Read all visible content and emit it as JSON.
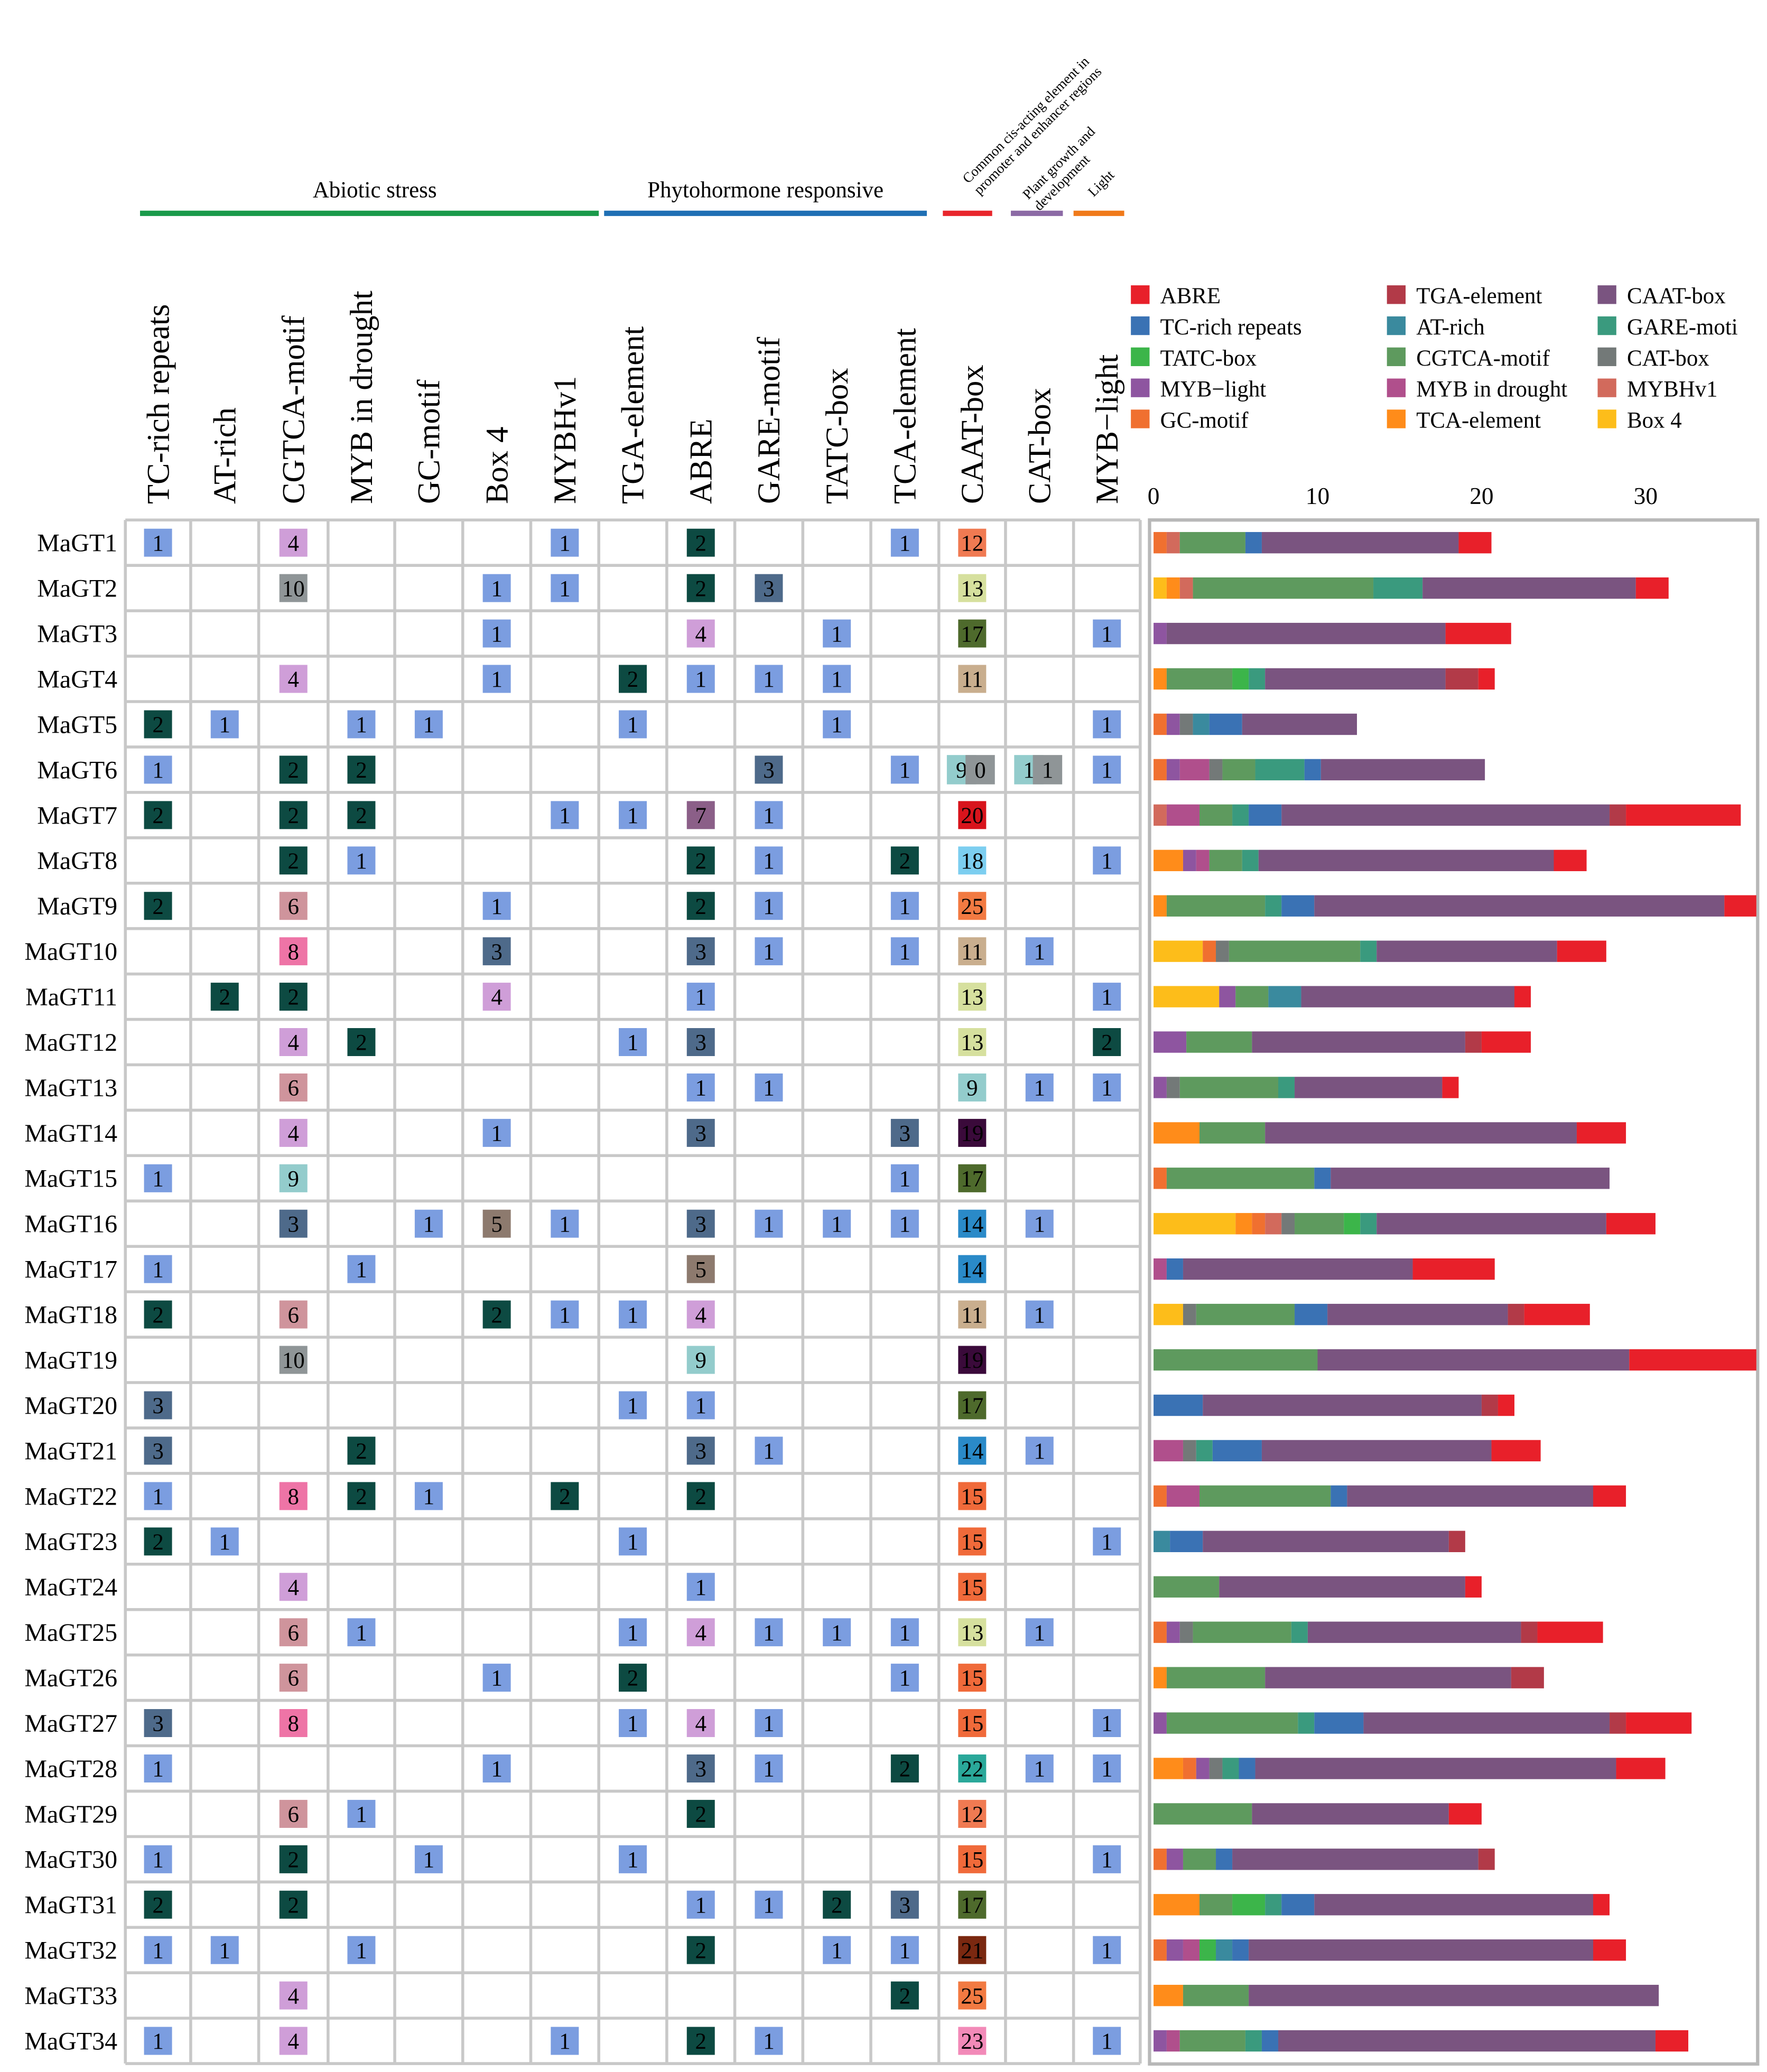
{
  "categories": [
    {
      "label": "Abiotic stress",
      "color": "#1a9a4a"
    },
    {
      "label": "Phytohormone responsive",
      "color": "#1f6fb4"
    },
    {
      "label": "Common cis-acting element in promoter and enhancer regions",
      "color": "#e8262c"
    },
    {
      "label": "Plant growth and development",
      "color": "#8c6aa5"
    },
    {
      "label": "Light",
      "color": "#f07a1a"
    }
  ],
  "elements": [
    "TC-rich repeats",
    "AT-rich",
    "CGTCA-motif",
    "MYB in drought",
    "GC-motif",
    "Box 4",
    "MYBHv1",
    "TGA-element",
    "ABRE",
    "GARE-motif",
    "TATC-box",
    "TCA-element",
    "CAAT-box",
    "CAT-box",
    "MYB−light"
  ],
  "genes": [
    "MaGT1",
    "MaGT2",
    "MaGT3",
    "MaGT4",
    "MaGT5",
    "MaGT6",
    "MaGT7",
    "MaGT8",
    "MaGT9",
    "MaGT10",
    "MaGT11",
    "MaGT12",
    "MaGT13",
    "MaGT14",
    "MaGT15",
    "MaGT16",
    "MaGT17",
    "MaGT18",
    "MaGT19",
    "MaGT20",
    "MaGT21",
    "MaGT22",
    "MaGT23",
    "MaGT24",
    "MaGT25",
    "MaGT26",
    "MaGT27",
    "MaGT28",
    "MaGT29",
    "MaGT30",
    "MaGT31",
    "MaGT32",
    "MaGT33",
    "MaGT34"
  ],
  "count_colors": {
    "1": "#7b9de0",
    "2": "#0d4a42",
    "3": "#4e6a8a",
    "4": "#cf9ed8",
    "5": "#8d7a6e",
    "6": "#cf949c",
    "7": "#8b5f88",
    "8": "#ee74a6",
    "9": "#93cccc",
    "10": "#8f9597",
    "11": "#c9ae8e",
    "12": "#f07a52",
    "13": "#d6e09e",
    "14": "#2a8ac8",
    "15": "#f06a3a",
    "17": "#4e6a2c",
    "18": "#7ccef0",
    "19": "#3a0a3a",
    "20": "#d8141c",
    "21": "#7a2810",
    "22": "#2aa89a",
    "23": "#f28ab8",
    "25": "#f27a42"
  },
  "matrix": [
    [
      "1",
      "",
      "4",
      "",
      "",
      "",
      "1",
      "",
      "2",
      "",
      "",
      "1",
      "12",
      "",
      ""
    ],
    [
      "",
      "",
      "10",
      "",
      "",
      "1",
      "1",
      "",
      "2",
      "3",
      "",
      "",
      "13",
      "",
      ""
    ],
    [
      "",
      "",
      "",
      "",
      "",
      "1",
      "",
      "",
      "4",
      "",
      "1",
      "",
      "17",
      "",
      "1"
    ],
    [
      "",
      "",
      "4",
      "",
      "",
      "1",
      "",
      "2",
      "1",
      "1",
      "1",
      "",
      "11",
      "",
      ""
    ],
    [
      "2",
      "1",
      "",
      "1",
      "1",
      "",
      "",
      "1",
      "",
      "",
      "1",
      "",
      "",
      "",
      "1"
    ],
    [
      "1",
      "",
      "2",
      "2",
      "",
      "",
      "",
      "",
      "",
      "3",
      "",
      "1",
      "9 0",
      "1 1",
      "1"
    ],
    [
      "2",
      "",
      "2",
      "2",
      "",
      "",
      "1",
      "1",
      "7",
      "1",
      "",
      "",
      "20",
      "",
      ""
    ],
    [
      "",
      "",
      "2",
      "1",
      "",
      "",
      "",
      "",
      "2",
      "1",
      "",
      "2",
      "18",
      "",
      "1"
    ],
    [
      "2",
      "",
      "6",
      "",
      "",
      "1",
      "",
      "",
      "2",
      "1",
      "",
      "1",
      "25",
      "",
      ""
    ],
    [
      "",
      "",
      "8",
      "",
      "",
      "3",
      "",
      "",
      "3",
      "1",
      "",
      "1",
      "11",
      "1",
      ""
    ],
    [
      "",
      "2",
      "2",
      "",
      "",
      "4",
      "",
      "",
      "1",
      "",
      "",
      "",
      "13",
      "",
      "1"
    ],
    [
      "",
      "",
      "4",
      "2",
      "",
      "",
      "",
      "1",
      "3",
      "",
      "",
      "",
      "13",
      "",
      "2"
    ],
    [
      "",
      "",
      "6",
      "",
      "",
      "",
      "",
      "",
      "1",
      "1",
      "",
      "",
      "9",
      "1",
      "1"
    ],
    [
      "",
      "",
      "4",
      "",
      "",
      "1",
      "",
      "",
      "3",
      "",
      "",
      "3",
      "19",
      "",
      ""
    ],
    [
      "1",
      "",
      "9",
      "",
      "",
      "",
      "",
      "",
      "",
      "",
      "",
      "1",
      "17",
      "",
      ""
    ],
    [
      "",
      "",
      "3",
      "",
      "1",
      "5",
      "1",
      "",
      "3",
      "1",
      "1",
      "1",
      "14",
      "1",
      ""
    ],
    [
      "1",
      "",
      "",
      "1",
      "",
      "",
      "",
      "",
      "5",
      "",
      "",
      "",
      "14",
      "",
      ""
    ],
    [
      "2",
      "",
      "6",
      "",
      "",
      "2",
      "1",
      "1",
      "4",
      "",
      "",
      "",
      "11",
      "1",
      ""
    ],
    [
      "",
      "",
      "10",
      "",
      "",
      "",
      "",
      "",
      "9",
      "",
      "",
      "",
      "19",
      "",
      ""
    ],
    [
      "3",
      "",
      "",
      "",
      "",
      "",
      "",
      "1",
      "1",
      "",
      "",
      "",
      "17",
      "",
      ""
    ],
    [
      "3",
      "",
      "",
      "2",
      "",
      "",
      "",
      "",
      "3",
      "1",
      "",
      "",
      "14",
      "1",
      ""
    ],
    [
      "1",
      "",
      "8",
      "2",
      "1",
      "",
      "2",
      "",
      "2",
      "",
      "",
      "",
      "15",
      "",
      ""
    ],
    [
      "2",
      "1",
      "",
      "",
      "",
      "",
      "",
      "1",
      "",
      "",
      "",
      "",
      "15",
      "",
      "1"
    ],
    [
      "",
      "",
      "4",
      "",
      "",
      "",
      "",
      "",
      "1",
      "",
      "",
      "",
      "15",
      "",
      ""
    ],
    [
      "",
      "",
      "6",
      "1",
      "",
      "",
      "",
      "1",
      "4",
      "1",
      "1",
      "1",
      "13",
      "1",
      ""
    ],
    [
      "",
      "",
      "6",
      "",
      "",
      "1",
      "",
      "2",
      "",
      "",
      "",
      "1",
      "15",
      "",
      ""
    ],
    [
      "3",
      "",
      "8",
      "",
      "",
      "",
      "",
      "1",
      "4",
      "1",
      "",
      "",
      "15",
      "",
      "1"
    ],
    [
      "1",
      "",
      "",
      "",
      "",
      "1",
      "",
      "",
      "3",
      "1",
      "",
      "2",
      "22",
      "1",
      "1"
    ],
    [
      "",
      "",
      "6",
      "1",
      "",
      "",
      "",
      "",
      "2",
      "",
      "",
      "",
      "12",
      "",
      ""
    ],
    [
      "1",
      "",
      "2",
      "",
      "1",
      "",
      "",
      "1",
      "",
      "",
      "",
      "",
      "15",
      "",
      "1"
    ],
    [
      "2",
      "",
      "2",
      "",
      "",
      "",
      "",
      "",
      "1",
      "1",
      "2",
      "3",
      "17",
      "",
      ""
    ],
    [
      "1",
      "1",
      "",
      "1",
      "",
      "",
      "",
      "",
      "2",
      "",
      "1",
      "1",
      "21",
      "",
      "1"
    ],
    [
      "",
      "",
      "4",
      "",
      "",
      "",
      "",
      "",
      "",
      "",
      "",
      "2",
      "25",
      "",
      ""
    ],
    [
      "1",
      "",
      "4",
      "",
      "",
      "",
      "1",
      "",
      "2",
      "1",
      "",
      "",
      "23",
      "",
      "1"
    ]
  ],
  "chart_data": {
    "type": "bar",
    "orientation": "horizontal",
    "stacked": true,
    "x_ticks": [
      0,
      10,
      20,
      30
    ],
    "xlim": [
      0,
      37.5
    ],
    "categories": [
      "MaGT1",
      "MaGT2",
      "MaGT3",
      "MaGT4",
      "MaGT5",
      "MaGT6",
      "MaGT7",
      "MaGT8",
      "MaGT9",
      "MaGT10",
      "MaGT11",
      "MaGT12",
      "MaGT13",
      "MaGT14",
      "MaGT15",
      "MaGT16",
      "MaGT17",
      "MaGT18",
      "MaGT19",
      "MaGT20",
      "MaGT21",
      "MaGT22",
      "MaGT23",
      "MaGT24",
      "MaGT25",
      "MaGT26",
      "MaGT27",
      "MaGT28",
      "MaGT29",
      "MaGT30",
      "MaGT31",
      "MaGT32",
      "MaGT33",
      "MaGT34"
    ],
    "series": [
      {
        "name": "Box 4",
        "color": "#fdbd1a",
        "values": [
          0,
          0.8,
          0,
          0,
          0,
          0,
          0,
          0,
          0,
          3,
          4,
          0,
          0,
          0,
          0,
          5,
          0,
          1.8,
          0,
          0,
          0,
          0,
          0,
          0,
          0,
          0,
          0,
          0,
          0,
          0,
          0,
          0,
          0,
          0
        ]
      },
      {
        "name": "TCA-element",
        "color": "#ff8c1a",
        "values": [
          0,
          0.8,
          0,
          0.8,
          0,
          0,
          0,
          1.8,
          0.8,
          0,
          0,
          0,
          0,
          2.8,
          0,
          1,
          0,
          0,
          0,
          0,
          0,
          0,
          0,
          0,
          0,
          0.8,
          0,
          1.8,
          0,
          0,
          2.8,
          0,
          1.8,
          0
        ]
      },
      {
        "name": "GC-motif",
        "color": "#f07030",
        "values": [
          0.8,
          0,
          0,
          0,
          0.8,
          0.8,
          0,
          0,
          0,
          0.8,
          0,
          0,
          0,
          0,
          0.8,
          0.8,
          0,
          0,
          0,
          0,
          0,
          0.8,
          0,
          0,
          0.8,
          0,
          0,
          0.8,
          0,
          0.8,
          0,
          0.8,
          0,
          0
        ]
      },
      {
        "name": "MYBHv1",
        "color": "#d26a5c",
        "values": [
          0.8,
          0.8,
          0,
          0,
          0,
          0,
          0.8,
          0,
          0,
          0,
          0,
          0,
          0,
          0,
          0,
          1,
          0,
          0,
          0,
          0,
          0,
          0,
          0,
          0,
          0,
          0,
          0,
          0,
          0,
          0,
          0,
          0,
          0,
          0
        ]
      },
      {
        "name": "MYB−light",
        "color": "#8e55a0",
        "values": [
          0,
          0,
          0.8,
          0,
          0.8,
          0.8,
          0,
          0.8,
          0,
          0,
          1,
          2,
          0.8,
          0,
          0,
          0,
          0,
          0,
          0,
          0,
          0,
          0,
          0,
          0,
          0.8,
          0,
          0.8,
          0.8,
          0,
          1,
          0,
          1,
          0,
          0.8
        ]
      },
      {
        "name": "MYB in drought",
        "color": "#b04f8c",
        "values": [
          0,
          0,
          0,
          0,
          0,
          1.8,
          2,
          0.8,
          0,
          0,
          0,
          0,
          0,
          0,
          0,
          0,
          0.8,
          0,
          0,
          0,
          1.8,
          2,
          0,
          0,
          0,
          0,
          0,
          0,
          0,
          0,
          0,
          1,
          0,
          0.8
        ]
      },
      {
        "name": "CAT-box",
        "color": "#737978",
        "values": [
          0,
          0,
          0,
          0,
          0.8,
          0.8,
          0,
          0,
          0,
          0.8,
          0,
          0,
          0.8,
          0,
          0,
          0.8,
          0,
          0.8,
          0,
          0,
          0.8,
          0,
          0,
          0,
          0.8,
          0,
          0,
          0.8,
          0,
          0,
          0,
          0,
          0,
          0
        ]
      },
      {
        "name": "CGTCA-motif",
        "color": "#5e9a5e",
        "values": [
          4,
          11,
          0,
          4,
          0,
          2,
          2,
          2,
          6,
          8,
          2,
          4,
          6,
          4,
          9,
          3,
          0,
          6,
          10,
          0,
          0,
          8,
          0,
          4,
          6,
          6,
          8,
          0,
          6,
          2,
          2,
          0,
          4,
          4
        ]
      },
      {
        "name": "TATC-box",
        "color": "#3cb54a",
        "values": [
          0,
          0,
          0,
          1,
          0,
          0,
          0,
          0,
          0,
          0,
          0,
          0,
          0,
          0,
          0,
          1,
          0,
          0,
          0,
          0,
          0,
          0,
          0,
          0,
          0,
          0,
          0,
          0,
          0,
          0,
          2,
          1,
          0,
          0
        ]
      },
      {
        "name": "GARE-motif",
        "color": "#3a9a7e",
        "values": [
          0,
          3,
          0,
          1,
          0,
          3,
          1,
          1,
          1,
          1,
          0,
          0,
          1,
          0,
          0,
          1,
          0,
          0,
          0,
          0,
          1,
          0,
          0,
          0,
          1,
          0,
          1,
          1,
          0,
          0,
          1,
          0,
          0,
          1
        ]
      },
      {
        "name": "AT-rich",
        "color": "#3a8a9e",
        "values": [
          0,
          0,
          0,
          0,
          1,
          0,
          0,
          0,
          0,
          0,
          2,
          0,
          0,
          0,
          0,
          0,
          0,
          0,
          0,
          0,
          0,
          0,
          1,
          0,
          0,
          0,
          0,
          0,
          0,
          0,
          0,
          1,
          0,
          0
        ]
      },
      {
        "name": "TC-rich repeats",
        "color": "#3a72b4",
        "values": [
          1,
          0,
          0,
          0,
          2,
          1,
          2,
          0,
          2,
          0,
          0,
          0,
          0,
          0,
          1,
          0,
          1,
          2,
          0,
          3,
          3,
          1,
          2,
          0,
          0,
          0,
          3,
          1,
          0,
          1,
          2,
          1,
          0,
          1
        ]
      },
      {
        "name": "CAAT-box",
        "color": "#7a5480",
        "values": [
          12,
          13,
          17,
          11,
          7,
          10,
          20,
          18,
          25,
          11,
          13,
          13,
          9,
          19,
          17,
          14,
          14,
          11,
          19,
          17,
          14,
          15,
          15,
          15,
          13,
          15,
          15,
          22,
          12,
          15,
          17,
          21,
          25,
          23
        ]
      },
      {
        "name": "TGA-element",
        "color": "#b23a48",
        "values": [
          0,
          0,
          0,
          2,
          0,
          0,
          1,
          0,
          0,
          0,
          0,
          1,
          0,
          0,
          0,
          0,
          0,
          1,
          0,
          1,
          0,
          0,
          1,
          0,
          1,
          2,
          1,
          0,
          0,
          1,
          0,
          0,
          0,
          0
        ]
      },
      {
        "name": "ABRE",
        "color": "#e8202a",
        "values": [
          2,
          2,
          4,
          1,
          0,
          0,
          7,
          2,
          2,
          3,
          1,
          3,
          1,
          3,
          0,
          3,
          5,
          4,
          9,
          1,
          3,
          2,
          0,
          1,
          4,
          0,
          4,
          3,
          2,
          0,
          1,
          2,
          0,
          2
        ]
      }
    ],
    "legend_order": [
      "ABRE",
      "TC-rich repeats",
      "TATC-box",
      "MYB−light",
      "GC-motif",
      "TGA-element",
      "AT-rich",
      "CGTCA-motif",
      "MYB in drought",
      "TCA-element",
      "CAAT-box",
      "GARE-moti",
      "CAT-box",
      "MYBHv1",
      "Box 4"
    ],
    "legend_colors": [
      "#e8202a",
      "#3a72b4",
      "#3cb54a",
      "#8e55a0",
      "#f07030",
      "#b23a48",
      "#3a8a9e",
      "#5e9a5e",
      "#b04f8c",
      "#ff8c1a",
      "#7a5480",
      "#3a9a7e",
      "#737978",
      "#d26a5c",
      "#fdbd1a"
    ],
    "legend_placement": "top-right"
  }
}
